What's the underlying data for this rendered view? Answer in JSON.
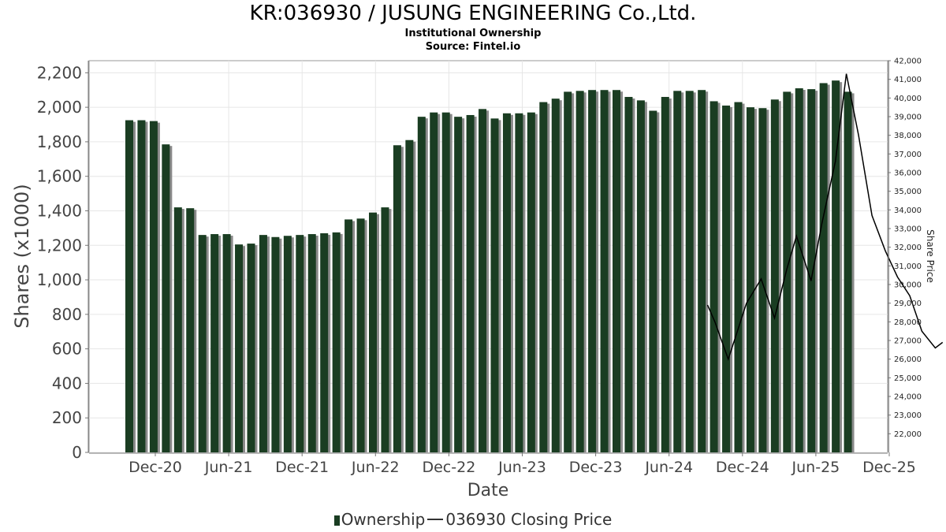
{
  "header": {
    "title": "KR:036930 / JUSUNG ENGINEERING Co.,Ltd.",
    "subtitle": "Institutional Ownership",
    "source": "Source: Fintel.io"
  },
  "legend": {
    "ownership": "Ownership",
    "price": "036930 Closing Price"
  },
  "colors": {
    "bar": "#1a3d22",
    "bar_shadow": "#8a8a8a",
    "line": "#000000",
    "grid": "#e6e6e6"
  },
  "chart_data": {
    "type": "bar",
    "xlabel": "Date",
    "ylabel": "Shares (x1000)",
    "y2label": "Share Price",
    "ylim": [
      0,
      2270
    ],
    "y2lim": [
      21000,
      42000
    ],
    "yticks": [
      "0",
      "200",
      "400",
      "600",
      "800",
      "1,000",
      "1,200",
      "1,400",
      "1,600",
      "1,800",
      "2,000",
      "2,200"
    ],
    "y2ticks": [
      "22,000",
      "23,000",
      "24,000",
      "25,000",
      "26,000",
      "27,000",
      "28,000",
      "29,000",
      "30,000",
      "31,000",
      "32,000",
      "33,000",
      "34,000",
      "35,000",
      "36,000",
      "37,000",
      "38,000",
      "39,000",
      "40,000",
      "41,000",
      "42,000"
    ],
    "xticks": [
      "Dec-20",
      "Jun-21",
      "Dec-21",
      "Jun-22",
      "Dec-22",
      "Jun-23",
      "Dec-23",
      "Jun-24",
      "Dec-24",
      "Jun-25",
      "Dec-25"
    ],
    "grid": true,
    "legend_position": "bottom",
    "series": [
      {
        "name": "Ownership",
        "values": [
          1925,
          1925,
          1920,
          1785,
          1420,
          1415,
          1260,
          1265,
          1265,
          1205,
          1210,
          1260,
          1248,
          1255,
          1260,
          1265,
          1270,
          1275,
          1350,
          1355,
          1390,
          1420,
          1780,
          1810,
          1945,
          1970,
          1970,
          1945,
          1955,
          1990,
          1935,
          1965,
          1965,
          1970,
          2030,
          2050,
          2090,
          2095,
          2100,
          2100,
          2100,
          2060,
          2040,
          1980,
          2060,
          2095,
          2095,
          2100,
          2035,
          2010,
          2030,
          2000,
          1995,
          2045,
          2090,
          2110,
          2105,
          2140,
          2155,
          2090
        ]
      },
      {
        "name": "036930 Closing Price",
        "points": [
          {
            "x": 47.8,
            "y": 28900
          },
          {
            "x": 48.4,
            "y": 28000
          },
          {
            "x": 49.5,
            "y": 26000
          },
          {
            "x": 50.4,
            "y": 27800
          },
          {
            "x": 51.0,
            "y": 29000
          },
          {
            "x": 52.2,
            "y": 30300
          },
          {
            "x": 53.3,
            "y": 28200
          },
          {
            "x": 54.3,
            "y": 30800
          },
          {
            "x": 55.1,
            "y": 32600
          },
          {
            "x": 56.3,
            "y": 30200
          },
          {
            "x": 57.2,
            "y": 33300
          },
          {
            "x": 58.3,
            "y": 36600
          },
          {
            "x": 59.2,
            "y": 41300
          },
          {
            "x": 60.2,
            "y": 38000
          },
          {
            "x": 61.3,
            "y": 33700
          },
          {
            "x": 62.4,
            "y": 31800
          },
          {
            "x": 63.4,
            "y": 30400
          },
          {
            "x": 64.4,
            "y": 29400
          },
          {
            "x": 65.4,
            "y": 27500
          },
          {
            "x": 66.5,
            "y": 26600
          },
          {
            "x": 67.1,
            "y": 26900
          }
        ]
      }
    ]
  }
}
